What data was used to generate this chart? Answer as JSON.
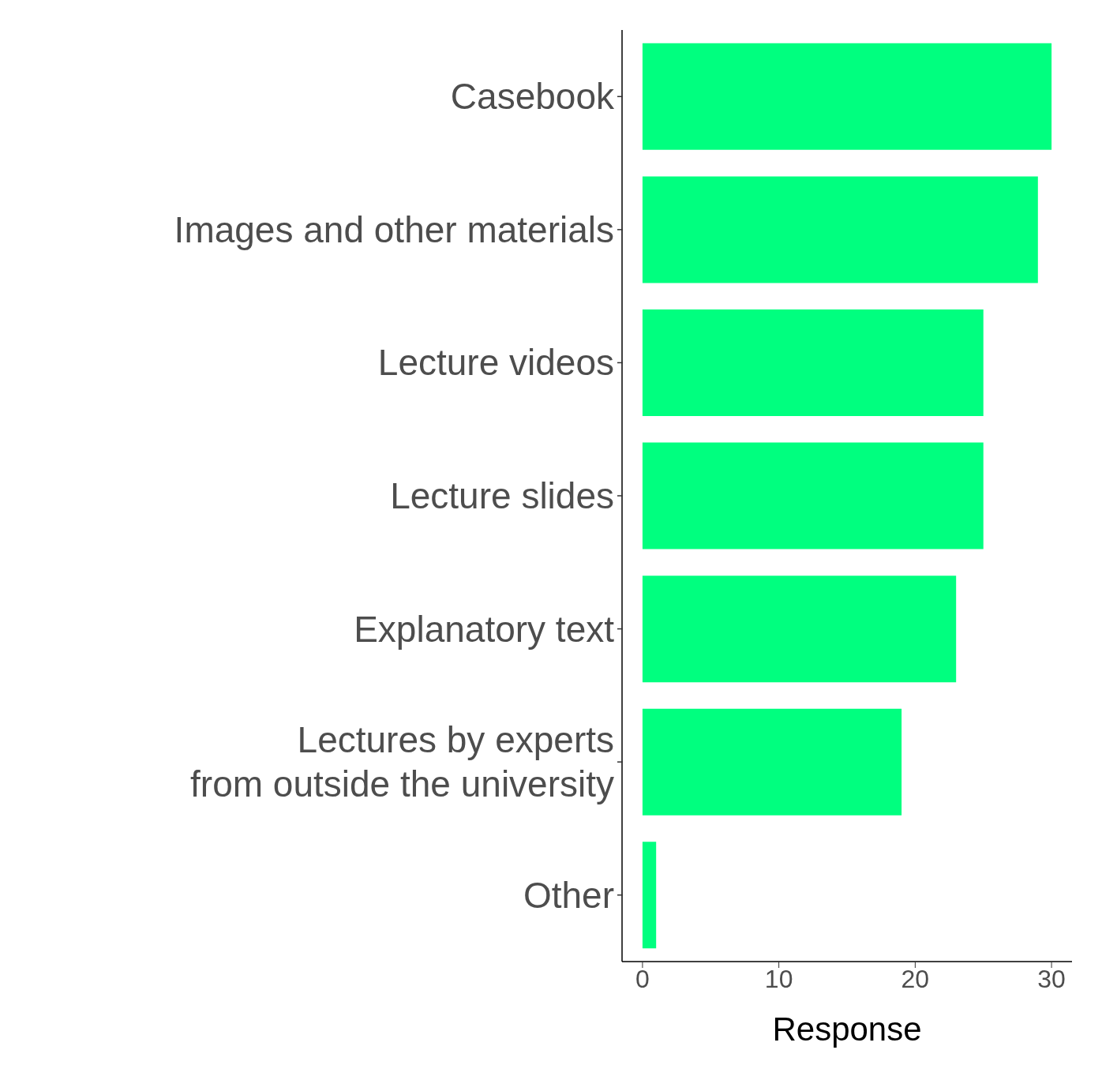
{
  "chart_data": {
    "type": "bar",
    "orientation": "horizontal",
    "xlabel": "Response",
    "categories": [
      "Casebook",
      "Images and other materials",
      "Lecture videos",
      "Lecture slides",
      "Explanatory text",
      "Lectures by experts\nfrom outside the university",
      "Other"
    ],
    "values": [
      30,
      29,
      25,
      25,
      23,
      19,
      1
    ],
    "color": "#00ff7f",
    "xlim": [
      -1.5,
      31.5
    ],
    "xticks": [
      0,
      10,
      20,
      30
    ],
    "grid": false,
    "legend": false
  }
}
